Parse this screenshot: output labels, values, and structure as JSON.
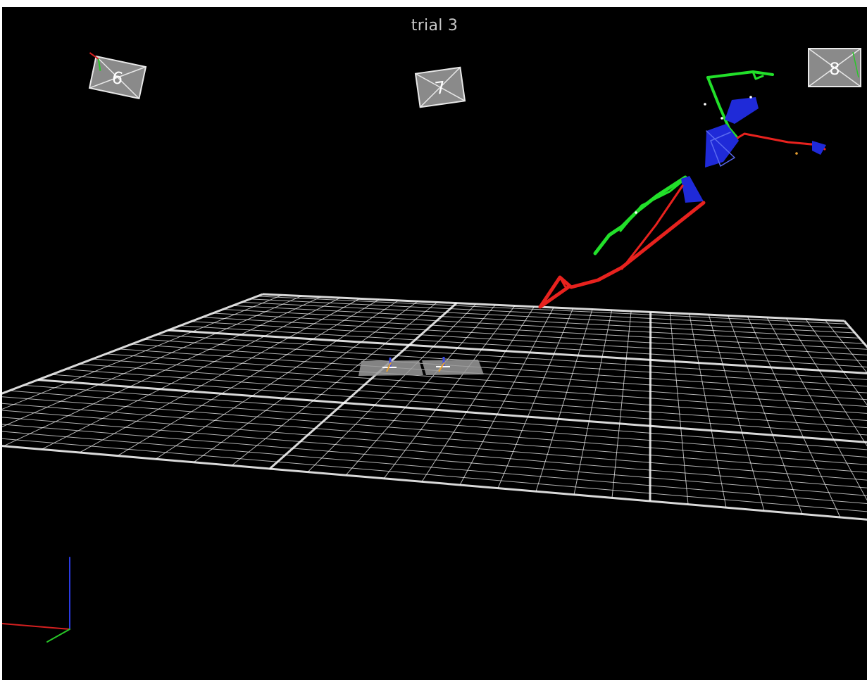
{
  "viewport": {
    "title": "trial 3",
    "background": "#000000",
    "grid_color": "#ffffff"
  },
  "cameras": [
    {
      "id": "camera-6",
      "label": "6"
    },
    {
      "id": "camera-7",
      "label": "7"
    },
    {
      "id": "camera-8",
      "label": "8"
    }
  ],
  "skeleton": {
    "segment_colors": {
      "green": "#22e02a",
      "red": "#e8221e",
      "blue": "#1f2ad8"
    }
  },
  "axes_gizmo": {
    "x_color": "#d42020",
    "y_color": "#28c828",
    "z_color": "#2a3ae0"
  }
}
